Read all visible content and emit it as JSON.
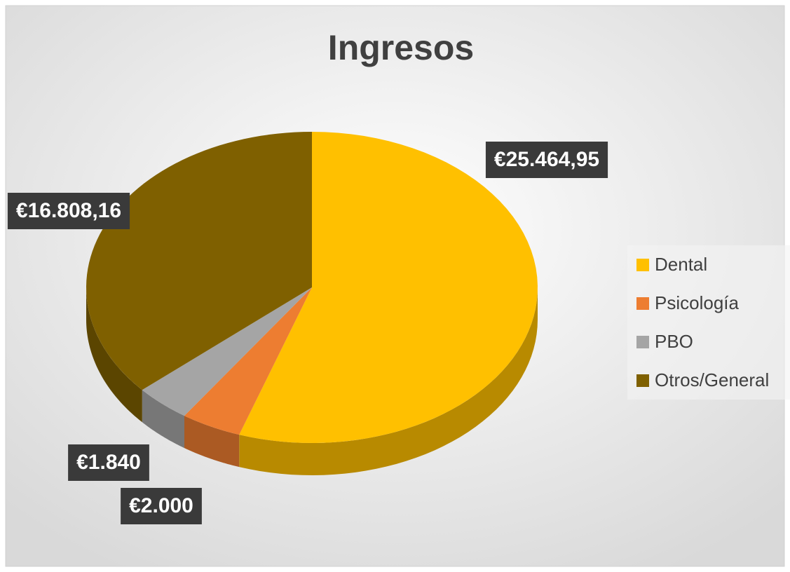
{
  "chart_data": {
    "type": "pie",
    "title": "Ingresos",
    "categories": [
      "Dental",
      "Psicología",
      "PBO",
      "Otros/General"
    ],
    "values": [
      25464.95,
      2000,
      1840,
      16808.16
    ],
    "value_labels": [
      "€25.464,95",
      "€2.000",
      "€1.840",
      "€16.808,16"
    ],
    "colors": [
      "#FFC000",
      "#ED7D31",
      "#A5A5A5",
      "#7F6000"
    ],
    "legend": "right"
  }
}
